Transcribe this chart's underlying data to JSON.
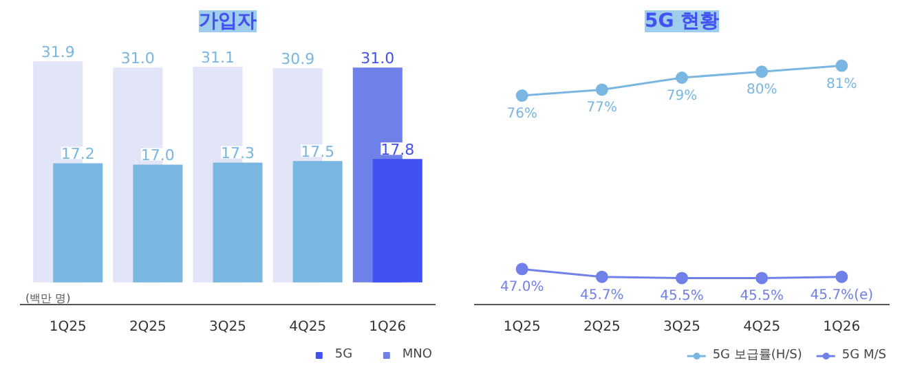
{
  "chart_data": [
    {
      "type": "bar",
      "title": "가입자",
      "subtitle": "(백만 명)",
      "categories": [
        "1Q25",
        "2Q25",
        "3Q25",
        "4Q25",
        "1Q26"
      ],
      "series": [
        {
          "name": "MNO",
          "color": "#6f80e8",
          "colors": [
            "#e2e4f8",
            "#e2e4f8",
            "#e2e4f8",
            "#e2e4f8",
            "#6f80e8"
          ],
          "values": [
            31.9,
            31.0,
            31.1,
            30.9,
            31.0
          ],
          "value_labels": [
            "31.9",
            "31.0",
            "31.1",
            "30.9",
            "31.0"
          ]
        },
        {
          "name": "5G",
          "color": "#4152f0",
          "colors": [
            "#7ab6e2",
            "#7ab6e2",
            "#7ab6e2",
            "#7ab6e2",
            "#4152f0"
          ],
          "values": [
            17.2,
            17.0,
            17.3,
            17.5,
            17.8
          ],
          "value_labels": [
            "17.2",
            "17.0",
            "17.3",
            "17.5",
            "17.8"
          ]
        }
      ],
      "legend": "bottom right",
      "grid": false,
      "tick_labels": "x"
    },
    {
      "type": "line",
      "title": "5G 현황",
      "categories": [
        "1Q25",
        "2Q25",
        "3Q25",
        "4Q25",
        "1Q26"
      ],
      "series": [
        {
          "name": "5G 보급률(H/S)",
          "color": "#7ab6e2",
          "values": [
            76,
            77,
            79,
            80,
            81
          ],
          "value_labels": [
            "76%",
            "77%",
            "79%",
            "80%",
            "81%"
          ]
        },
        {
          "name": "5G M/S",
          "color": "#6f80e8",
          "values": [
            47.0,
            45.7,
            45.5,
            45.5,
            45.7
          ],
          "value_labels": [
            "47.0%",
            "45.7%",
            "45.5%",
            "45.5%",
            "45.7%(e)"
          ]
        }
      ],
      "marker": "circle",
      "line_style": "solid",
      "legend": "bottom right",
      "grid": false,
      "tick_labels": "x"
    }
  ]
}
